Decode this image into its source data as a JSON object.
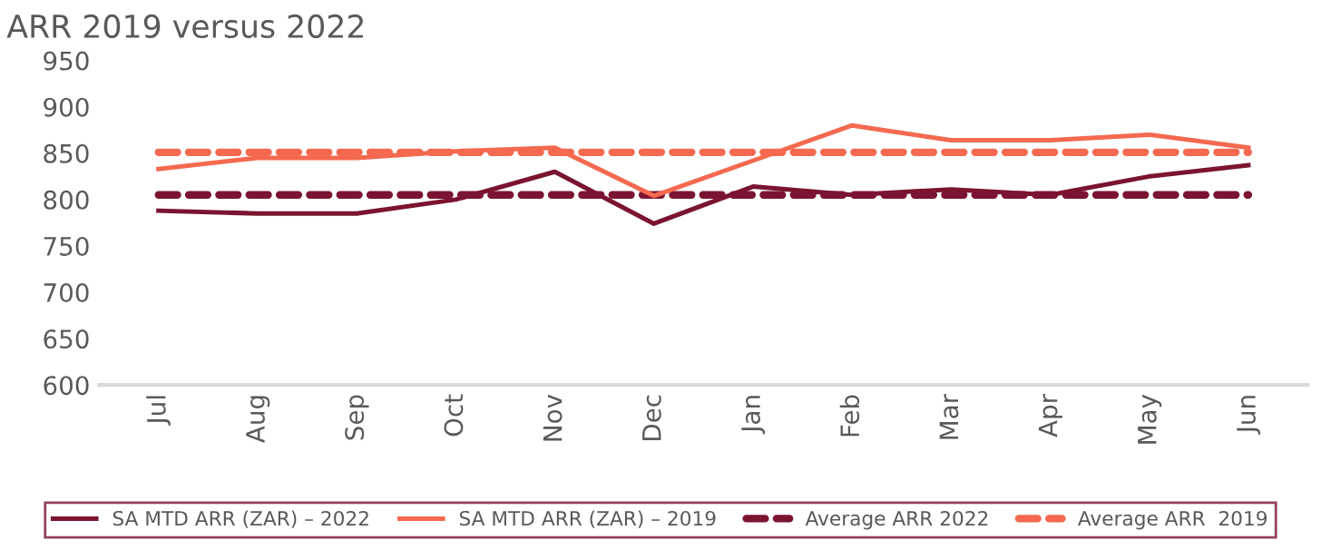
{
  "chart_data": {
    "type": "line",
    "title": "ARR 2019 versus 2022",
    "categories": [
      "Jul",
      "Aug",
      "Sep",
      "Oct",
      "Nov",
      "Dec",
      "Jan",
      "Feb",
      "Mar",
      "Apr",
      "May",
      "Jun"
    ],
    "series": [
      {
        "name": "SA MTD ARR (ZAR) – 2022",
        "color": "#7b1430",
        "line_style": "solid",
        "values": [
          788,
          785,
          785,
          800,
          830,
          774,
          814,
          805,
          811,
          805,
          825,
          837
        ]
      },
      {
        "name": "SA MTD ARR (ZAR) – 2019",
        "color": "#f4694f",
        "line_style": "solid",
        "values": [
          833,
          845,
          845,
          852,
          856,
          804,
          842,
          880,
          864,
          864,
          870,
          856
        ]
      },
      {
        "name": "Average ARR 2022",
        "color": "#7b1430",
        "line_style": "dashed",
        "values": [
          805,
          805,
          805,
          805,
          805,
          805,
          805,
          805,
          805,
          805,
          805,
          805
        ]
      },
      {
        "name": "Average ARR  2019",
        "color": "#f4694f",
        "line_style": "dashed",
        "values": [
          851,
          851,
          851,
          851,
          851,
          851,
          851,
          851,
          851,
          851,
          851,
          851
        ]
      }
    ],
    "ylim": [
      600,
      950
    ],
    "yticks": [
      600,
      650,
      700,
      750,
      800,
      850,
      900,
      950
    ],
    "grid": false,
    "legend": "bottom",
    "marker": "none"
  }
}
